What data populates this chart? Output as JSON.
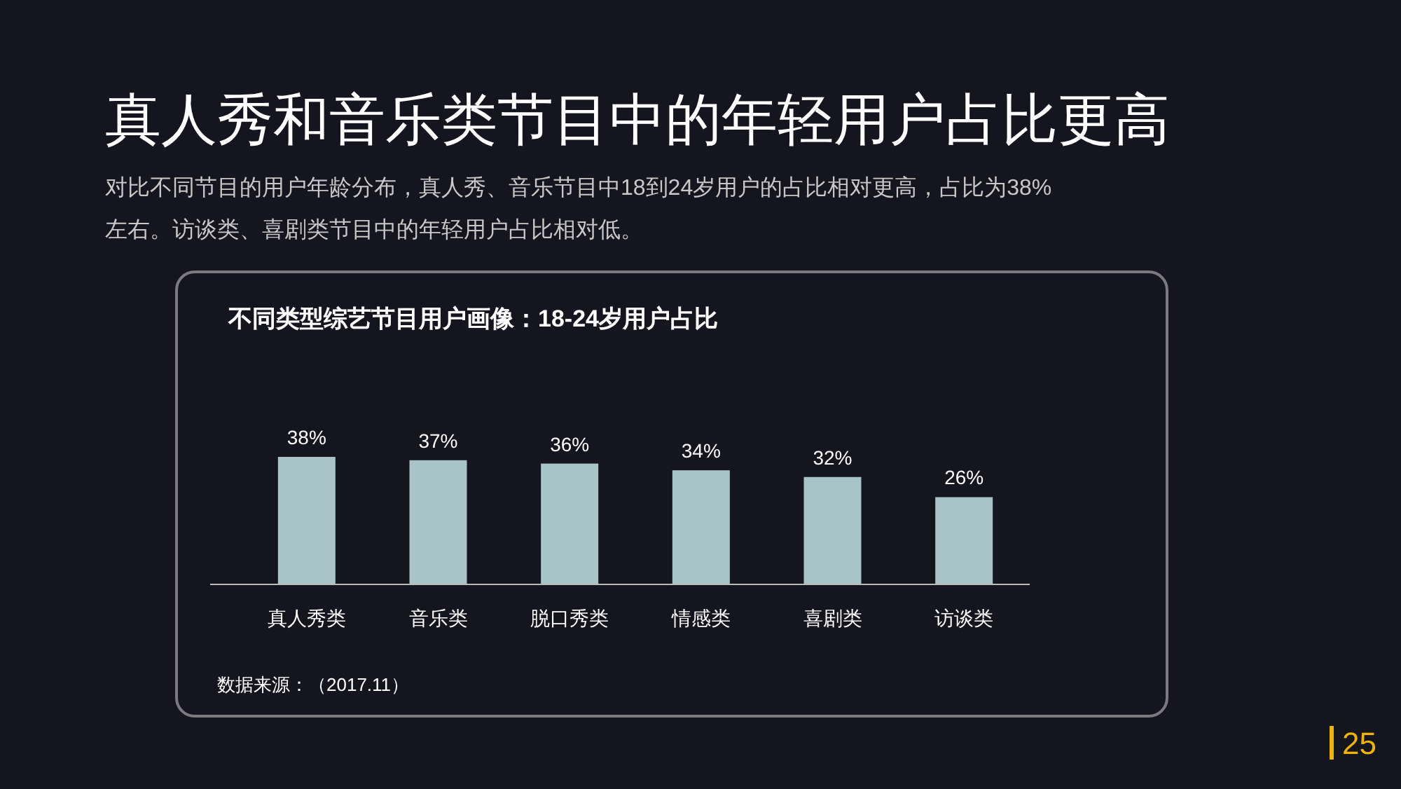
{
  "chart_data": {
    "type": "bar",
    "title": "真人秀和音乐类节目中的年轻用户占比更高",
    "subtitle": "对比不同节目的用户年龄分布，真人秀、音乐节目中18到24岁用户的占比相对更高，占比为38%左右。访谈类、喜剧类节目中的年轻用户占比相对低。",
    "annotations": [
      "不同类型综艺节目用户画像：18-24岁用户占比",
      "数据来源：（2017.11）",
      "25"
    ],
    "categories": [
      "真人秀类",
      "音乐类",
      "脱口秀类",
      "情感类",
      "喜剧类",
      "访谈类"
    ],
    "values": [
      38,
      37,
      36,
      34,
      32,
      26
    ],
    "value_labels": [
      "38%",
      "37%",
      "36%",
      "34%",
      "32%",
      "26%"
    ],
    "color": "#a9c4c9"
  }
}
